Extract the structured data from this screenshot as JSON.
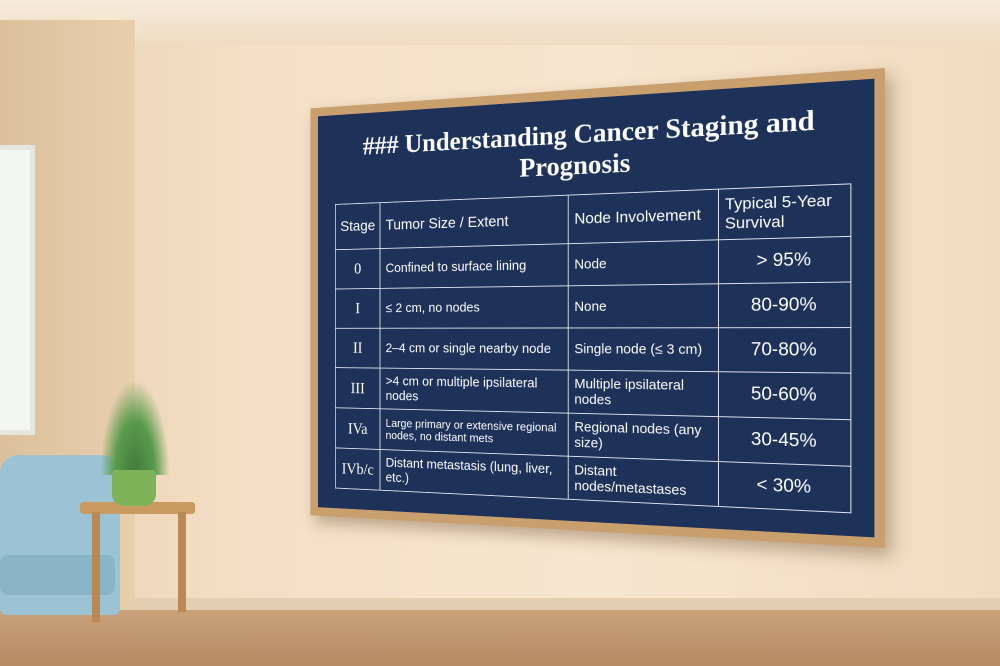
{
  "board": {
    "title": "### Understanding Cancer Staging and Prognosis",
    "table": {
      "header": [
        "Stage",
        "Tumor Size / Extent",
        "Node Involvement",
        "Typical 5-Year Survival"
      ],
      "rows": [
        [
          "0",
          "Confined to surface lining",
          "Node",
          "> 95%"
        ],
        [
          "I",
          "≤ 2 cm, no nodes",
          "None",
          "80-90%"
        ],
        [
          "II",
          "2–4 cm or single nearby node",
          "Single node (≤ 3 cm)",
          "70-80%"
        ],
        [
          "III",
          ">4 cm or multiple ipsilateral nodes",
          "Multiple ipsilateral nodes",
          "50-60%"
        ],
        [
          "IVa",
          "Large primary or extensive regional nodes, no distant mets",
          "Regional nodes (any size)",
          "30-45%"
        ],
        [
          "IVb/c",
          "Distant metastasis (lung, liver, etc.)",
          "Distant nodes/metastases",
          "< 30%"
        ]
      ]
    }
  }
}
